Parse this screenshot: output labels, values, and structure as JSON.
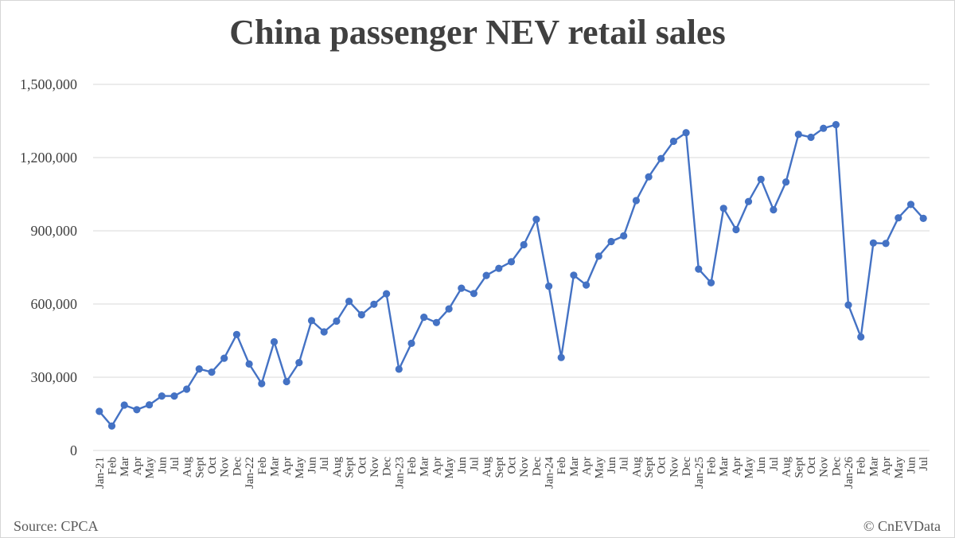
{
  "chart_data": {
    "type": "line",
    "title": "China passenger NEV retail sales",
    "xlabel": "",
    "ylabel": "",
    "ylim": [
      0,
      1500000
    ],
    "yticks": [
      0,
      300000,
      600000,
      900000,
      1200000,
      1500000
    ],
    "ytick_labels": [
      "0",
      "300,000",
      "600,000",
      "900,000",
      "1,200,000",
      "1,500,000"
    ],
    "grid": true,
    "legend": "none",
    "color": "#4472c4",
    "categories": [
      "Jan-21",
      "Feb",
      "Mar",
      "Apr",
      "May",
      "Jun",
      "Jul",
      "Aug",
      "Sept",
      "Oct",
      "Nov",
      "Dec",
      "Jan-22",
      "Feb",
      "Mar",
      "Apr",
      "May",
      "Jun",
      "Jul",
      "Aug",
      "Sept",
      "Oct",
      "Nov",
      "Dec",
      "Jan-23",
      "Feb",
      "Mar",
      "Apr",
      "May",
      "Jun",
      "Jul",
      "Aug",
      "Sept",
      "Oct",
      "Nov",
      "Dec",
      "Jan-24",
      "Feb",
      "Mar",
      "Apr",
      "May",
      "Jun",
      "Jul",
      "Aug",
      "Sept",
      "Oct",
      "Nov",
      "Dec",
      "Jan-25",
      "Feb",
      "Mar",
      "Apr",
      "May",
      "Jun",
      "Jul",
      "Aug",
      "Sept",
      "Oct",
      "Nov",
      "Dec",
      "Jan-26",
      "Feb",
      "Mar",
      "Apr",
      "May",
      "Jun",
      "Jul"
    ],
    "values": [
      160000,
      100000,
      186000,
      167000,
      187000,
      223000,
      223000,
      251000,
      334000,
      321000,
      378000,
      475000,
      354000,
      274000,
      445000,
      282000,
      360000,
      532000,
      486000,
      530000,
      611000,
      556000,
      599000,
      642000,
      333000,
      439000,
      546000,
      524000,
      580000,
      665000,
      643000,
      717000,
      746000,
      773000,
      843000,
      947000,
      673000,
      381000,
      718000,
      678000,
      796000,
      856000,
      879000,
      1024000,
      1121000,
      1196000,
      1267000,
      1302000,
      743000,
      687000,
      992000,
      905000,
      1020000,
      1111000,
      986000,
      1100000,
      1295000,
      1283000,
      1320000,
      1335000,
      596000,
      465000,
      850000,
      848000,
      953000,
      1008000,
      951000
    ]
  },
  "footer": {
    "source": "Source: CPCA",
    "credit": "© CnEVData"
  }
}
